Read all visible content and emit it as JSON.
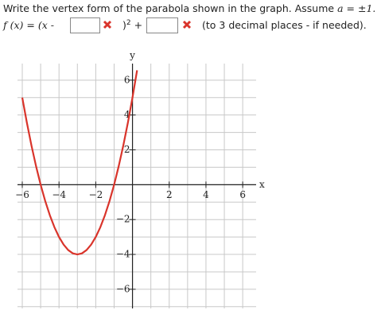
{
  "question": {
    "text": "Write the vertex form of the parabola shown in the graph. Assume",
    "assumption": "a = ±1.",
    "formula_lhs": "f (x) = (x -",
    "close_paren": ")",
    "exponent": "2",
    "plus": "+",
    "note": "(to 3 decimal places - if needed)."
  },
  "chart_data": {
    "type": "line",
    "x_label": "x",
    "y_label": "y",
    "x": [
      -6,
      -5.75,
      -5.5,
      -5.25,
      -5,
      -4.75,
      -4.5,
      -4.25,
      -4,
      -3.75,
      -3.5,
      -3.25,
      -3,
      -2.75,
      -2.5,
      -2.25,
      -2,
      -1.75,
      -1.5,
      -1.25,
      -1,
      -0.75,
      -0.5,
      -0.25,
      0,
      0.25
    ],
    "series": [
      {
        "color": "#d9342b",
        "values": [
          5,
          3.5625,
          2.25,
          1.0625,
          0,
          -0.9375,
          -1.75,
          -2.4375,
          -3,
          -3.4375,
          -3.75,
          -3.9375,
          -4,
          -3.9375,
          -3.75,
          -3.4375,
          -3,
          -2.4375,
          -1.75,
          -0.9375,
          0,
          1.0625,
          2.25,
          3.5625,
          5,
          6.5625
        ]
      }
    ],
    "xlim": [
      -6.26,
      6.73
    ],
    "ylim": [
      -7.1,
      6.95
    ],
    "xticks": [
      {
        "value": -6,
        "label": "−6"
      },
      {
        "value": -4,
        "label": "−4"
      },
      {
        "value": -2,
        "label": "−2"
      },
      2,
      4,
      6
    ],
    "yticks": [
      {
        "value": -6,
        "label": "−6"
      },
      {
        "value": -4,
        "label": "−4"
      },
      {
        "value": -2,
        "label": "−2"
      },
      2,
      4,
      6
    ],
    "xgrid": [
      -6,
      -5,
      -4,
      -3,
      -2,
      -1,
      0,
      1,
      2,
      3,
      4,
      5,
      6
    ],
    "ygrid": [
      -7,
      -6,
      -5,
      -4,
      -3,
      -2,
      -1,
      0,
      1,
      2,
      3,
      4,
      5,
      6
    ],
    "grid": true
  }
}
